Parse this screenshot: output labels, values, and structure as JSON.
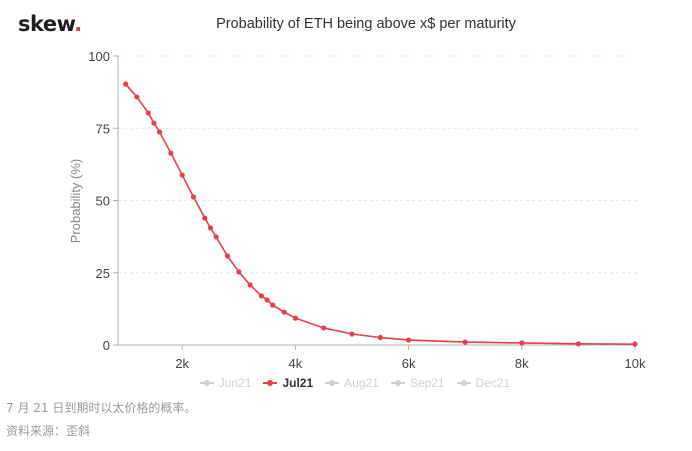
{
  "header": {
    "logo_text": "skew",
    "logo_dot": ".",
    "title": "Probability of ETH being above x$ per maturity"
  },
  "colors": {
    "series": "#e8404a",
    "grid": "#e6e6e6",
    "axis": "#b0b0b0",
    "legend_inactive": "#d0d0d0"
  },
  "legend": [
    {
      "label": "Jun21",
      "active": false
    },
    {
      "label": "Jul21",
      "active": true
    },
    {
      "label": "Aug21",
      "active": false
    },
    {
      "label": "Sep21",
      "active": false
    },
    {
      "label": "Dec21",
      "active": false
    }
  ],
  "captions": {
    "line1": "7 月 21 日到期时以太价格的概率。",
    "line2": "资料来源：歪斜"
  },
  "chart_data": {
    "type": "line",
    "title": "Probability of ETH being above x$ per maturity",
    "xlabel": "",
    "ylabel": "Probability (%)",
    "xlim": [
      1000,
      10000
    ],
    "ylim": [
      0,
      100
    ],
    "x_ticks": [
      2000,
      4000,
      6000,
      8000,
      10000
    ],
    "x_tick_labels": [
      "2k",
      "4k",
      "6k",
      "8k",
      "10k"
    ],
    "y_ticks": [
      0,
      25,
      50,
      75,
      100
    ],
    "y_tick_labels": [
      "0",
      "25",
      "50",
      "75",
      "100"
    ],
    "grid": true,
    "legend_position": "bottom",
    "series": [
      {
        "name": "Jul21",
        "x": [
          1000,
          1200,
          1400,
          1500,
          1600,
          1800,
          2000,
          2200,
          2400,
          2500,
          2600,
          2800,
          3000,
          3200,
          3400,
          3500,
          3600,
          3800,
          4000,
          4500,
          5000,
          5500,
          6000,
          7000,
          8000,
          9000,
          10000
        ],
        "values": [
          90.3,
          85.8,
          80.3,
          76.8,
          73.7,
          66.4,
          58.8,
          51.2,
          43.9,
          40.5,
          37.4,
          30.8,
          25.3,
          20.8,
          17.0,
          15.6,
          13.8,
          11.4,
          9.3,
          5.9,
          3.8,
          2.6,
          1.7,
          1.0,
          0.7,
          0.4,
          0.3
        ]
      }
    ]
  }
}
